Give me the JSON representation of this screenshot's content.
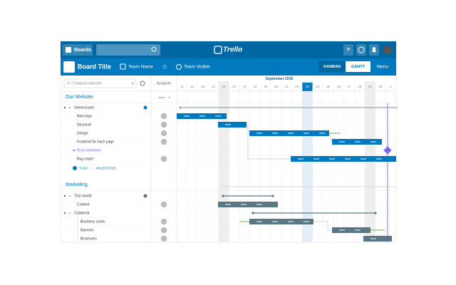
{
  "topbar": {
    "boards": "Boards",
    "logo": "Trello"
  },
  "board": {
    "title": "Board Title",
    "team": "Team Name",
    "visibility": "Team Visible",
    "views": [
      "KANBAN",
      "GANTT"
    ],
    "menu": "Menu"
  },
  "sidebar": {
    "filter": "3 / 7 projects selected",
    "assignee": "Assignee",
    "show": "show"
  },
  "timeline": {
    "month": "September 2018",
    "days": [
      11,
      12,
      13,
      14,
      15,
      16,
      17,
      18,
      19,
      20,
      21,
      22,
      23,
      24,
      25,
      26,
      27,
      28,
      29,
      30,
      1
    ]
  },
  "projects": [
    {
      "name": "Our Website",
      "tasks": [
        {
          "name": "General part"
        },
        {
          "name": "New logo"
        },
        {
          "name": "Structure"
        },
        {
          "name": "Design"
        },
        {
          "name": "Frontend for each page"
        },
        {
          "name": "Final milestone"
        },
        {
          "name": "Bug report"
        }
      ],
      "actions": [
        "TASK",
        "MILESTONE"
      ]
    },
    {
      "name": "Marketing",
      "tasks": [
        {
          "name": "This month"
        },
        {
          "name": "Content"
        },
        {
          "name": "Collateral"
        },
        {
          "name": "Business cards"
        },
        {
          "name": "Banners"
        },
        {
          "name": "Brochures"
        }
      ]
    }
  ]
}
